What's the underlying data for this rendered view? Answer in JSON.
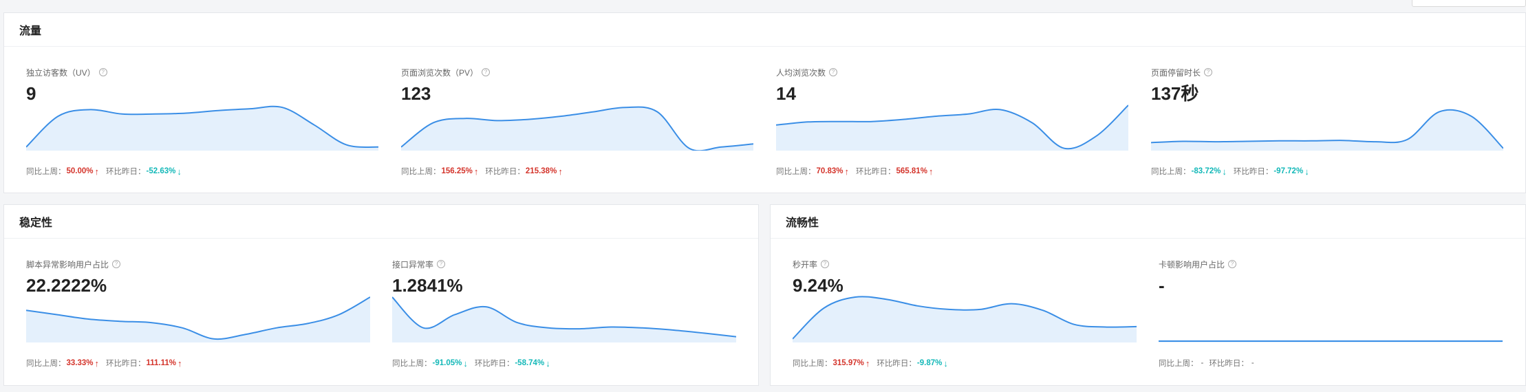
{
  "colors": {
    "line": "#3a8ee6",
    "area": "#e4f0fc",
    "up": "#d4342b",
    "down": "#13b8b8"
  },
  "icons": {
    "help": "?",
    "up_arrow": "↑",
    "down_arrow": "↓"
  },
  "labels": {
    "wow": "同比上周：",
    "dod": "环比昨日："
  },
  "traffic": {
    "title": "流量",
    "metrics": [
      {
        "title": "独立访客数（UV）",
        "value": "9",
        "wow": "50.00%",
        "wow_dir": "up",
        "dod": "-52.63%",
        "dod_dir": "down",
        "series": [
          0.05,
          0.75,
          0.9,
          0.8,
          0.8,
          0.82,
          0.88,
          0.92,
          0.95,
          0.55,
          0.1,
          0.05
        ]
      },
      {
        "title": "页面浏览次数（PV）",
        "value": "123",
        "wow": "156.25%",
        "wow_dir": "up",
        "dod": "215.38%",
        "dod_dir": "up",
        "series": [
          0.05,
          0.6,
          0.7,
          0.65,
          0.68,
          0.75,
          0.85,
          0.95,
          0.85,
          0.02,
          0.05,
          0.12
        ]
      },
      {
        "title": "人均浏览次数",
        "value": "14",
        "wow": "70.83%",
        "wow_dir": "up",
        "dod": "565.81%",
        "dod_dir": "up",
        "series": [
          0.55,
          0.62,
          0.63,
          0.63,
          0.68,
          0.75,
          0.8,
          0.9,
          0.6,
          0.02,
          0.3,
          1.0
        ]
      },
      {
        "title": "页面停留时长",
        "value": "137秒",
        "wow": "-83.72%",
        "wow_dir": "down",
        "dod": "-97.72%",
        "dod_dir": "down",
        "series": [
          0.15,
          0.18,
          0.17,
          0.18,
          0.19,
          0.19,
          0.2,
          0.17,
          0.22,
          0.85,
          0.75,
          0.02
        ]
      }
    ]
  },
  "stability": {
    "title": "稳定性",
    "metrics": [
      {
        "title": "脚本异常影响用户占比",
        "value": "22.2222%",
        "wow": "33.33%",
        "wow_dir": "up",
        "dod": "111.11%",
        "dod_dir": "up",
        "series": [
          0.7,
          0.6,
          0.5,
          0.45,
          0.42,
          0.3,
          0.05,
          0.15,
          0.3,
          0.4,
          0.6,
          1.0
        ]
      },
      {
        "title": "接口异常率",
        "value": "1.2841%",
        "wow": "-91.05%",
        "wow_dir": "down",
        "dod": "-58.74%",
        "dod_dir": "down",
        "series": [
          1.0,
          0.3,
          0.6,
          0.78,
          0.42,
          0.3,
          0.28,
          0.32,
          0.3,
          0.25,
          0.18,
          0.1
        ]
      }
    ]
  },
  "smoothness": {
    "title": "流畅性",
    "metrics": [
      {
        "title": "秒开率",
        "value": "9.24%",
        "wow": "315.97%",
        "wow_dir": "up",
        "dod": "-9.87%",
        "dod_dir": "down",
        "series": [
          0.05,
          0.75,
          1.0,
          0.95,
          0.8,
          0.72,
          0.72,
          0.85,
          0.7,
          0.38,
          0.32,
          0.33
        ]
      },
      {
        "title": "卡顿影响用户占比",
        "value": "-",
        "wow": "-",
        "wow_dir": "none",
        "dod": "-",
        "dod_dir": "none",
        "series": [
          0,
          0,
          0,
          0,
          0,
          0,
          0,
          0,
          0,
          0,
          0,
          0
        ]
      }
    ]
  }
}
